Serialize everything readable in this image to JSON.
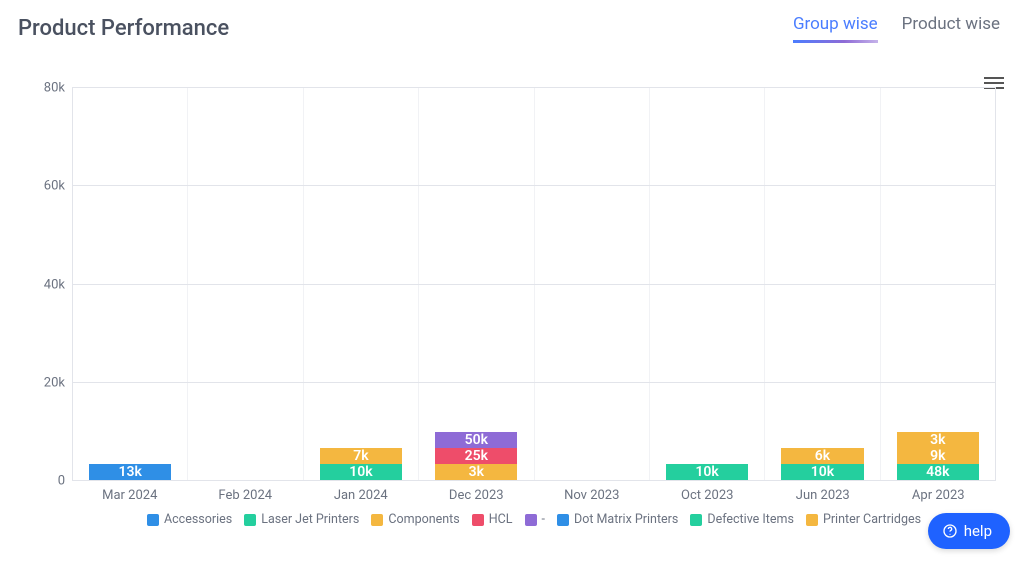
{
  "title": "Product Performance",
  "tabs": {
    "group": "Group wise",
    "product": "Product wise",
    "active": "group"
  },
  "help_label": "help",
  "chart": {
    "type": "stacked-bar",
    "y_max": 80,
    "y_tick_step": 20,
    "y_suffix": "k",
    "grid_color": "#e2e4ea",
    "background_color": "#ffffff",
    "axis_font_size": 13,
    "label_font_size": 14,
    "bar_width_pct": 72,
    "categories": [
      "Mar 2024",
      "Feb 2024",
      "Jan 2024",
      "Dec 2023",
      "Nov 2023",
      "Oct 2023",
      "Jun 2023",
      "Apr 2023"
    ],
    "series": [
      {
        "name": "Accessories",
        "color": "#2f8fe6"
      },
      {
        "name": "Laser Jet Printers",
        "color": "#24cf9e"
      },
      {
        "name": "Components",
        "color": "#f4b740"
      },
      {
        "name": "HCL",
        "color": "#ee4d6a"
      },
      {
        "name": "-",
        "color": "#8e6bd6"
      },
      {
        "name": "Dot Matrix Printers",
        "color": "#2f8fe6"
      },
      {
        "name": "Defective Items",
        "color": "#24cf9e"
      },
      {
        "name": "Printer Cartridges",
        "color": "#f4b740"
      }
    ],
    "stacks": [
      [
        {
          "series": 0,
          "value": 13,
          "label": "13k"
        }
      ],
      [],
      [
        {
          "series": 1,
          "value": 10,
          "label": "10k"
        },
        {
          "series": 2,
          "value": 7,
          "label": "7k"
        }
      ],
      [
        {
          "series": 2,
          "value": 3,
          "label": "3k"
        },
        {
          "series": 3,
          "value": 25,
          "label": "25k"
        },
        {
          "series": 4,
          "value": 50,
          "label": "50k"
        }
      ],
      [],
      [
        {
          "series": 6,
          "value": 10,
          "label": "10k"
        },
        {
          "series": 5,
          "value": 1,
          "label": ""
        }
      ],
      [
        {
          "series": 6,
          "value": 10,
          "label": "10k"
        },
        {
          "series": 7,
          "value": 6,
          "label": "6k"
        }
      ],
      [
        {
          "series": 1,
          "value": 48,
          "label": "48k"
        },
        {
          "series": 7,
          "value": 9,
          "label": "9k"
        },
        {
          "series": 2,
          "value": 3,
          "label": "3k"
        }
      ]
    ]
  }
}
